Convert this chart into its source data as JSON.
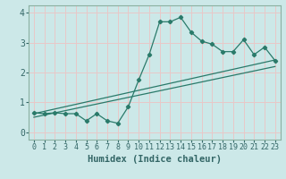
{
  "xlabel": "Humidex (Indice chaleur)",
  "ylabel": "",
  "bg_color": "#cce8e8",
  "grid_color": "#e8c8c8",
  "line_color": "#2a7a6a",
  "xlim": [
    -0.5,
    23.5
  ],
  "ylim": [
    -0.25,
    4.25
  ],
  "xticks": [
    0,
    1,
    2,
    3,
    4,
    5,
    6,
    7,
    8,
    9,
    10,
    11,
    12,
    13,
    14,
    15,
    16,
    17,
    18,
    19,
    20,
    21,
    22,
    23
  ],
  "yticks": [
    0,
    1,
    2,
    3,
    4
  ],
  "main_y": [
    0.65,
    0.62,
    0.65,
    0.62,
    0.62,
    0.38,
    0.62,
    0.38,
    0.3,
    0.85,
    1.75,
    2.6,
    3.7,
    3.7,
    3.85,
    3.35,
    3.05,
    2.95,
    2.7,
    2.7,
    3.1,
    2.6,
    2.85,
    2.4
  ],
  "reg_line1_x": [
    0,
    23
  ],
  "reg_line1_y": [
    0.62,
    2.42
  ],
  "reg_line2_x": [
    0,
    23
  ],
  "reg_line2_y": [
    0.5,
    2.2
  ],
  "spine_color": "#8ab0a0",
  "tick_color": "#336666",
  "xlabel_fontsize": 7.5,
  "tick_fontsize": 6.0
}
